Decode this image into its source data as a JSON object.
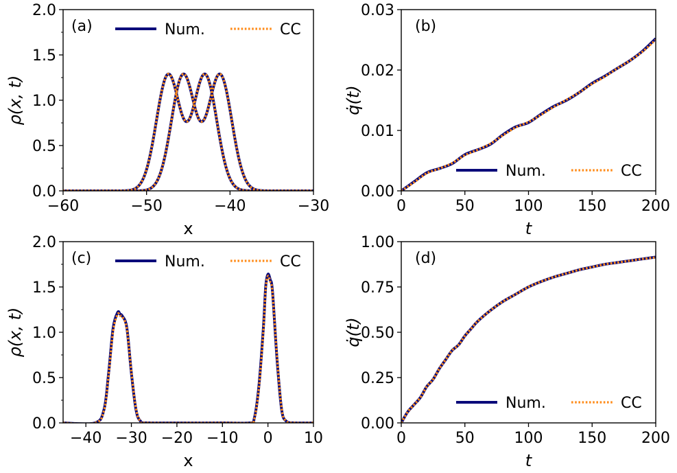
{
  "chart_data": [
    {
      "type": "line",
      "panel_label": "(a)",
      "xlabel": "x",
      "ylabel": "ρ(x, t)",
      "xlim": [
        -60,
        -30
      ],
      "ylim": [
        0.0,
        2.0
      ],
      "xticks": [
        -60,
        -50,
        -40,
        -30
      ],
      "xtick_labels": [
        "−60",
        "−50",
        "−40",
        "−30"
      ],
      "yticks": [
        0.0,
        0.5,
        1.0,
        1.5,
        2.0
      ],
      "ytick_labels": [
        "0.0",
        "0.5",
        "1.0",
        "1.5",
        "2.0"
      ],
      "legend": [
        "Num.",
        "CC"
      ],
      "legend_loc": "top",
      "series": [
        {
          "name": "Num.",
          "profile": "double-hump",
          "peak": 1.29,
          "shapes": [
            {
              "centers": [
                -47.4,
                -43.0
              ],
              "width": 2.0
            },
            {
              "centers": [
                -45.6,
                -41.2
              ],
              "width": 2.0
            }
          ]
        },
        {
          "name": "CC",
          "profile": "double-hump",
          "peak": 1.29,
          "shapes": [
            {
              "centers": [
                -47.4,
                -43.0
              ],
              "width": 2.0
            },
            {
              "centers": [
                -45.6,
                -41.2
              ],
              "width": 2.0
            }
          ]
        }
      ]
    },
    {
      "type": "line",
      "panel_label": "(b)",
      "xlabel": "t",
      "ylabel": "q̇(t)",
      "xlim": [
        0,
        200
      ],
      "ylim": [
        0.0,
        0.03
      ],
      "xticks": [
        0,
        50,
        100,
        150,
        200
      ],
      "xtick_labels": [
        "0",
        "50",
        "100",
        "150",
        "200"
      ],
      "yticks": [
        0.0,
        0.01,
        0.02,
        0.03
      ],
      "ytick_labels": [
        "0.00",
        "0.01",
        "0.02",
        "0.03"
      ],
      "legend": [
        "Num.",
        "CC"
      ],
      "legend_loc": "lower right",
      "series": [
        {
          "name": "Num.",
          "x": [
            0,
            10,
            20,
            30,
            40,
            50,
            60,
            70,
            80,
            90,
            100,
            110,
            120,
            130,
            140,
            150,
            160,
            170,
            180,
            190,
            200
          ],
          "y": [
            0.0,
            0.0015,
            0.003,
            0.0037,
            0.0045,
            0.006,
            0.0068,
            0.0077,
            0.0093,
            0.0106,
            0.0113,
            0.0127,
            0.014,
            0.015,
            0.0163,
            0.0178,
            0.019,
            0.0203,
            0.0216,
            0.0232,
            0.0252
          ]
        },
        {
          "name": "CC",
          "x": [
            0,
            10,
            20,
            30,
            40,
            50,
            60,
            70,
            80,
            90,
            100,
            110,
            120,
            130,
            140,
            150,
            160,
            170,
            180,
            190,
            200
          ],
          "y": [
            0.0,
            0.0014,
            0.0029,
            0.0037,
            0.0046,
            0.0059,
            0.0068,
            0.0078,
            0.0092,
            0.0105,
            0.0114,
            0.0126,
            0.0139,
            0.0151,
            0.0163,
            0.0177,
            0.0189,
            0.0203,
            0.0216,
            0.0231,
            0.025
          ]
        }
      ]
    },
    {
      "type": "line",
      "panel_label": "(c)",
      "xlabel": "x",
      "ylabel": "ρ(x, t)",
      "xlim": [
        -45,
        10
      ],
      "ylim": [
        0.0,
        2.0
      ],
      "xticks": [
        -40,
        -30,
        -20,
        -10,
        0,
        10
      ],
      "xtick_labels": [
        "−40",
        "−30",
        "−20",
        "−10",
        "0",
        "10"
      ],
      "yticks": [
        0.0,
        0.5,
        1.0,
        1.5,
        2.0
      ],
      "ytick_labels": [
        "0.0",
        "0.5",
        "1.0",
        "1.5",
        "2.0"
      ],
      "legend": [
        "Num.",
        "CC"
      ],
      "legend_loc": "top",
      "series": [
        {
          "name": "Num.",
          "x": [
            -45,
            -38,
            -36,
            -35,
            -34,
            -33,
            -32.5,
            -32,
            -31,
            -30,
            -29,
            -28,
            -26,
            -10,
            -4,
            -3,
            -2,
            -1,
            -0.5,
            0,
            0.5,
            1,
            2,
            3,
            4,
            6,
            10
          ],
          "y": [
            0.0,
            0.0,
            0.15,
            0.55,
            1.05,
            1.22,
            1.2,
            1.18,
            1.05,
            0.55,
            0.15,
            0.02,
            0.0,
            0.0,
            0.0,
            0.05,
            0.4,
            1.05,
            1.5,
            1.64,
            1.58,
            1.45,
            0.7,
            0.15,
            0.02,
            0.0,
            0.0
          ]
        },
        {
          "name": "CC",
          "x": [
            -45,
            -38,
            -36,
            -35,
            -34,
            -33,
            -32.5,
            -32,
            -31,
            -30,
            -29,
            -28,
            -26,
            -10,
            -4,
            -3,
            -2,
            -1,
            -0.5,
            0,
            0.5,
            1,
            2,
            3,
            4,
            6,
            10
          ],
          "y": [
            0.0,
            0.0,
            0.14,
            0.53,
            1.02,
            1.2,
            1.18,
            1.17,
            1.04,
            0.56,
            0.16,
            0.02,
            0.0,
            0.0,
            0.0,
            0.04,
            0.38,
            1.02,
            1.48,
            1.62,
            1.56,
            1.44,
            0.72,
            0.16,
            0.02,
            0.0,
            0.0
          ]
        }
      ]
    },
    {
      "type": "line",
      "panel_label": "(d)",
      "xlabel": "t",
      "ylabel": "q̇(t)",
      "xlim": [
        0,
        200
      ],
      "ylim": [
        0.0,
        1.0
      ],
      "xticks": [
        0,
        50,
        100,
        150,
        200
      ],
      "xtick_labels": [
        "0",
        "50",
        "100",
        "150",
        "200"
      ],
      "yticks": [
        0.0,
        0.25,
        0.5,
        0.75,
        1.0
      ],
      "ytick_labels": [
        "0.00",
        "0.25",
        "0.50",
        "0.75",
        "1.00"
      ],
      "legend": [
        "Num.",
        "CC"
      ],
      "legend_loc": "lower right",
      "series": [
        {
          "name": "Num.",
          "x": [
            0,
            5,
            10,
            15,
            20,
            25,
            30,
            35,
            40,
            45,
            50,
            55,
            60,
            70,
            80,
            90,
            100,
            110,
            120,
            130,
            140,
            150,
            160,
            170,
            180,
            190,
            200
          ],
          "y": [
            0.0,
            0.06,
            0.1,
            0.14,
            0.2,
            0.24,
            0.3,
            0.35,
            0.4,
            0.43,
            0.48,
            0.52,
            0.56,
            0.62,
            0.67,
            0.71,
            0.75,
            0.78,
            0.805,
            0.825,
            0.845,
            0.86,
            0.875,
            0.885,
            0.895,
            0.905,
            0.915
          ]
        },
        {
          "name": "CC",
          "x": [
            0,
            5,
            10,
            15,
            20,
            25,
            30,
            35,
            40,
            45,
            50,
            55,
            60,
            70,
            80,
            90,
            100,
            110,
            120,
            130,
            140,
            150,
            160,
            170,
            180,
            190,
            200
          ],
          "y": [
            0.0,
            0.06,
            0.1,
            0.14,
            0.2,
            0.24,
            0.3,
            0.35,
            0.4,
            0.43,
            0.48,
            0.52,
            0.56,
            0.62,
            0.67,
            0.71,
            0.75,
            0.78,
            0.805,
            0.825,
            0.845,
            0.86,
            0.875,
            0.885,
            0.895,
            0.905,
            0.913
          ]
        }
      ]
    }
  ],
  "colors": {
    "num": "#0a0a7a",
    "cc": "#ff8c1a",
    "axis": "#000000"
  }
}
